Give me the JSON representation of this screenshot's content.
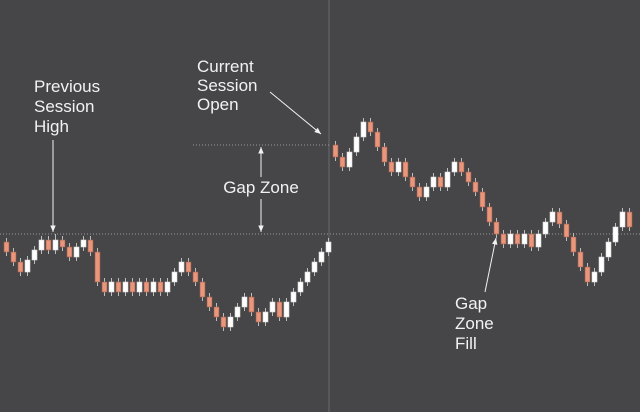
{
  "chart_data": {
    "type": "candlestick",
    "ylim": [
      0,
      412
    ],
    "up_color": "#ffffff",
    "down_color": "#e8967c",
    "open": [
      170,
      160,
      150,
      140,
      152,
      162,
      172,
      162,
      172,
      165,
      155,
      165,
      172,
      160,
      130,
      120,
      130,
      120,
      130,
      120,
      130,
      120,
      130,
      120,
      130,
      140,
      150,
      140,
      130,
      115,
      105,
      95,
      85,
      95,
      105,
      115,
      100,
      90,
      100,
      110,
      95,
      110,
      120,
      130,
      140,
      150,
      160,
      267,
      255,
      245,
      260,
      275,
      290,
      280,
      265,
      250,
      240,
      250,
      235,
      225,
      215,
      225,
      235,
      225,
      240,
      250,
      240,
      230,
      220,
      205,
      190,
      178,
      168,
      178,
      168,
      178,
      165,
      178,
      190,
      200,
      188,
      175,
      160,
      145,
      130,
      140,
      155,
      170,
      185,
      200
    ],
    "high": [
      174,
      164,
      154,
      156,
      166,
      176,
      176,
      178,
      176,
      169,
      169,
      176,
      176,
      164,
      134,
      134,
      134,
      134,
      134,
      134,
      134,
      134,
      134,
      134,
      144,
      154,
      154,
      144,
      134,
      119,
      109,
      99,
      99,
      109,
      119,
      119,
      104,
      104,
      114,
      114,
      114,
      124,
      134,
      144,
      154,
      164,
      174,
      271,
      259,
      264,
      279,
      294,
      294,
      284,
      269,
      254,
      254,
      254,
      239,
      229,
      229,
      239,
      239,
      244,
      254,
      254,
      244,
      234,
      224,
      209,
      194,
      182,
      182,
      182,
      182,
      182,
      182,
      194,
      204,
      204,
      192,
      179,
      164,
      149,
      144,
      159,
      174,
      189,
      204,
      204
    ],
    "low": [
      156,
      146,
      136,
      136,
      148,
      158,
      158,
      158,
      161,
      151,
      151,
      161,
      156,
      126,
      116,
      116,
      116,
      116,
      116,
      116,
      116,
      116,
      116,
      116,
      126,
      136,
      136,
      126,
      111,
      101,
      91,
      81,
      81,
      91,
      101,
      96,
      86,
      86,
      96,
      91,
      91,
      106,
      116,
      126,
      136,
      146,
      156,
      251,
      241,
      241,
      256,
      271,
      276,
      261,
      246,
      236,
      236,
      231,
      221,
      211,
      211,
      221,
      221,
      221,
      236,
      236,
      226,
      216,
      201,
      186,
      174,
      164,
      164,
      164,
      164,
      161,
      161,
      174,
      186,
      184,
      171,
      156,
      141,
      126,
      126,
      136,
      151,
      166,
      181,
      181
    ],
    "close": [
      160,
      150,
      140,
      152,
      162,
      172,
      162,
      172,
      165,
      155,
      165,
      172,
      160,
      130,
      120,
      130,
      120,
      130,
      120,
      130,
      120,
      130,
      120,
      130,
      140,
      150,
      140,
      130,
      115,
      105,
      95,
      85,
      95,
      105,
      115,
      100,
      90,
      100,
      110,
      95,
      110,
      120,
      130,
      140,
      150,
      160,
      170,
      255,
      245,
      260,
      275,
      290,
      280,
      265,
      250,
      240,
      250,
      235,
      225,
      215,
      225,
      235,
      225,
      240,
      250,
      240,
      230,
      220,
      205,
      190,
      178,
      168,
      178,
      168,
      178,
      165,
      178,
      190,
      200,
      188,
      175,
      160,
      145,
      130,
      140,
      155,
      170,
      185,
      200,
      185
    ],
    "previous_session_high": 178,
    "current_session_open": 267,
    "annotations": [
      {
        "lines": [
          "Previous",
          "Session",
          "High"
        ]
      },
      {
        "lines": [
          "Current",
          "Session",
          "Open"
        ]
      },
      {
        "lines": [
          "Gap Zone"
        ]
      },
      {
        "lines": [
          "Gap",
          "Zone",
          "Fill"
        ]
      }
    ]
  }
}
